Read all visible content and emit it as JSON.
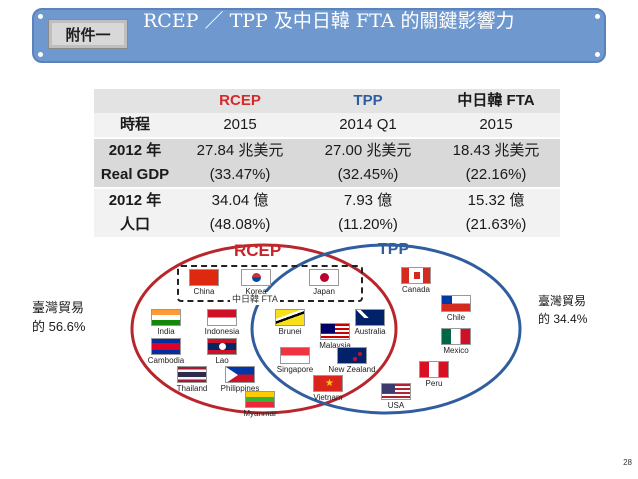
{
  "header": {
    "badge": "附件一",
    "title": "RCEP ／ TPP 及中日韓 FTA 的關鍵影響力"
  },
  "table": {
    "columns": [
      "",
      "RCEP",
      "TPP",
      "中日韓 FTA"
    ],
    "rows": [
      {
        "label": "時程",
        "values": [
          "2015",
          "2014 Q1",
          "2015"
        ]
      },
      {
        "label": "2012 年",
        "values": [
          "27.84 兆美元",
          "27.00 兆美元",
          "18.43 兆美元"
        ]
      },
      {
        "label": "Real GDP",
        "values": [
          "(33.47%)",
          "(32.45%)",
          "(22.16%)"
        ]
      },
      {
        "label": "2012 年",
        "values": [
          "34.04 億",
          "7.93 億",
          "15.32 億"
        ]
      },
      {
        "label": "人口",
        "values": [
          "(48.08%)",
          "(11.20%)",
          "(21.63%)"
        ]
      }
    ]
  },
  "venn": {
    "rcep_label": "RCEP",
    "tpp_label": "TPP",
    "fta_label": "中日韓 FTA",
    "countries": {
      "china": "China",
      "korea": "Korea",
      "japan": "Japan",
      "india": "India",
      "indonesia": "Indonesia",
      "cambodia": "Cambodia",
      "lao": "Lao",
      "thailand": "Thailand",
      "philippines": "Philippines",
      "myanmar": "Myanmar",
      "brunei": "Brunei",
      "australia": "Australia",
      "malaysia": "Malaysia",
      "singapore": "Singapore",
      "new_zealand": "New Zealand",
      "vietnam": "Vietnam",
      "canada": "Canada",
      "chile": "Chile",
      "mexico": "Mexico",
      "peru": "Peru",
      "usa": "USA"
    },
    "colors": {
      "rcep_circle": "#b8262c",
      "tpp_circle": "#2f5d9e"
    }
  },
  "side": {
    "left_line1": "臺灣貿易",
    "left_line2": "的 56.6%",
    "right_line1": "臺灣貿易",
    "right_line2": "的 34.4%"
  },
  "page_number": "28"
}
